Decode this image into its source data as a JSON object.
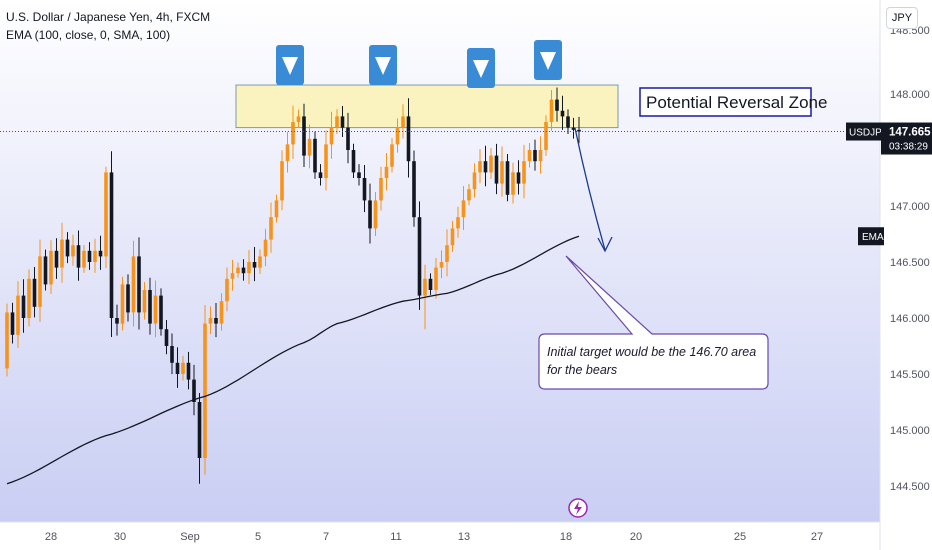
{
  "header": {
    "symbol_title": "U.S. Dollar / Japanese Yen, 4h, FXCM",
    "indicator": "EMA (100, close, 0, SMA, 100)",
    "currency_button": "JPY"
  },
  "colors": {
    "up": "#F7931A",
    "down": "#131722",
    "ema": "#131722",
    "zone_fill": "#FAF3C0",
    "zone_border": "#2962FF",
    "marker": "#3A8BD6",
    "arrow": "#1A3A8C",
    "background_top": "#FFFFFF",
    "background_bottom": "#C9CEF3"
  },
  "annotations": {
    "zone_label": "Potential Reversal Zone",
    "callout": [
      "Initial target would be the 146.70 area",
      "for the bears"
    ],
    "markers_icon": "triangle-down-icon",
    "event_icon": "lightning-icon"
  },
  "price_axis": {
    "labels": [
      "148.000",
      "147.500",
      "147.000",
      "146.500",
      "146.000",
      "145.500",
      "145.000",
      "144.500"
    ],
    "top_partial": "148.500",
    "symbol_tag": "USDJPY",
    "price": "147.665",
    "countdown": "03:38:29",
    "ema_tag": "EMA"
  },
  "time_axis": {
    "labels": [
      "28",
      "30",
      "Sep",
      "5",
      "7",
      "11",
      "13",
      "18",
      "20",
      "25",
      "27"
    ]
  },
  "chart_data": {
    "type": "candlestick",
    "title": "U.S. Dollar / Japanese Yen, 4h, FXCM",
    "symbol": "USDJPY",
    "timeframe": "4h",
    "last_price": 147.665,
    "ylim": [
      144.46,
      148.68
    ],
    "zone": [
      147.7,
      148.08
    ],
    "target": 146.7,
    "candles": [
      [
        145.55,
        146.05
      ],
      [
        146.05,
        145.85
      ],
      [
        145.85,
        146.2
      ],
      [
        146.2,
        146.0
      ],
      [
        146.0,
        146.35
      ],
      [
        146.35,
        146.1
      ],
      [
        146.1,
        146.55
      ],
      [
        146.55,
        146.3
      ],
      [
        146.3,
        146.6
      ],
      [
        146.6,
        146.45
      ],
      [
        146.45,
        146.7
      ],
      [
        146.7,
        146.55
      ],
      [
        146.55,
        146.65
      ],
      [
        146.65,
        146.45
      ],
      [
        146.45,
        146.6
      ],
      [
        146.6,
        146.5
      ],
      [
        146.5,
        146.6
      ],
      [
        146.6,
        146.55
      ],
      [
        146.55,
        147.3
      ],
      [
        147.3,
        146.0
      ],
      [
        146.0,
        145.95
      ],
      [
        145.95,
        146.3
      ],
      [
        146.3,
        146.05
      ],
      [
        146.05,
        146.55
      ],
      [
        146.55,
        146.05
      ],
      [
        146.05,
        146.25
      ],
      [
        146.25,
        145.95
      ],
      [
        145.95,
        146.2
      ],
      [
        146.2,
        145.9
      ],
      [
        145.9,
        145.75
      ],
      [
        145.75,
        145.6
      ],
      [
        145.6,
        145.5
      ],
      [
        145.5,
        145.6
      ],
      [
        145.6,
        145.45
      ],
      [
        145.45,
        145.25
      ],
      [
        145.25,
        144.75
      ],
      [
        144.75,
        145.95
      ],
      [
        145.95,
        146.0
      ],
      [
        146.0,
        145.95
      ],
      [
        145.95,
        146.15
      ],
      [
        146.15,
        146.35
      ],
      [
        146.35,
        146.4
      ],
      [
        146.4,
        146.45
      ],
      [
        146.45,
        146.4
      ],
      [
        146.4,
        146.5
      ],
      [
        146.5,
        146.45
      ],
      [
        146.45,
        146.55
      ],
      [
        146.55,
        146.7
      ],
      [
        146.7,
        146.9
      ],
      [
        146.9,
        147.05
      ],
      [
        147.05,
        147.4
      ],
      [
        147.4,
        147.55
      ],
      [
        147.55,
        147.75
      ],
      [
        147.75,
        147.8
      ],
      [
        147.8,
        147.45
      ],
      [
        147.45,
        147.6
      ],
      [
        147.6,
        147.3
      ],
      [
        147.3,
        147.25
      ],
      [
        147.25,
        147.55
      ],
      [
        147.55,
        147.7
      ],
      [
        147.7,
        147.8
      ],
      [
        147.8,
        147.7
      ],
      [
        147.7,
        147.5
      ],
      [
        147.5,
        147.3
      ],
      [
        147.3,
        147.25
      ],
      [
        147.25,
        147.05
      ],
      [
        147.05,
        146.8
      ],
      [
        146.8,
        147.05
      ],
      [
        147.05,
        147.25
      ],
      [
        147.25,
        147.35
      ],
      [
        147.35,
        147.55
      ],
      [
        147.55,
        147.7
      ],
      [
        147.7,
        147.8
      ],
      [
        147.8,
        147.4
      ],
      [
        147.4,
        146.9
      ],
      [
        146.9,
        146.2
      ],
      [
        146.2,
        146.35
      ],
      [
        146.35,
        146.25
      ],
      [
        146.25,
        146.45
      ],
      [
        146.45,
        146.5
      ],
      [
        146.5,
        146.65
      ],
      [
        146.65,
        146.8
      ],
      [
        146.8,
        146.9
      ],
      [
        146.9,
        147.05
      ],
      [
        147.05,
        147.15
      ],
      [
        147.15,
        147.3
      ],
      [
        147.3,
        147.4
      ],
      [
        147.4,
        147.3
      ],
      [
        147.3,
        147.45
      ],
      [
        147.45,
        147.2
      ],
      [
        147.2,
        147.4
      ],
      [
        147.4,
        147.1
      ],
      [
        147.1,
        147.3
      ],
      [
        147.3,
        147.2
      ],
      [
        147.2,
        147.4
      ],
      [
        147.4,
        147.5
      ],
      [
        147.5,
        147.4
      ],
      [
        147.4,
        147.5
      ],
      [
        147.5,
        147.75
      ],
      [
        147.75,
        147.95
      ],
      [
        147.95,
        147.85
      ],
      [
        147.85,
        147.8
      ],
      [
        147.8,
        147.7
      ],
      [
        147.7,
        147.68
      ],
      [
        147.68,
        147.665
      ]
    ],
    "ema": [
      [
        0,
        144.52
      ],
      [
        18,
        144.95
      ],
      [
        36,
        145.3
      ],
      [
        54,
        145.78
      ],
      [
        60,
        145.95
      ],
      [
        72,
        146.15
      ],
      [
        80,
        146.22
      ],
      [
        90,
        146.4
      ],
      [
        104,
        146.73
      ]
    ]
  }
}
